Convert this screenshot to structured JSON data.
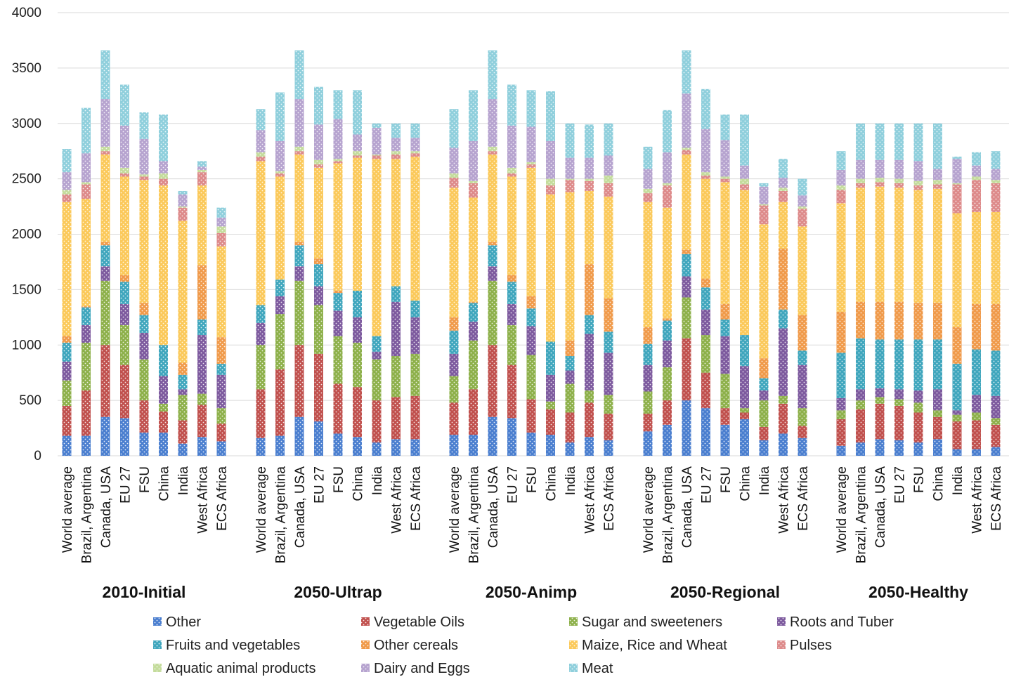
{
  "chart_data": {
    "type": "bar",
    "stacked": true,
    "ylim": [
      0,
      4000
    ],
    "yticks": [
      0,
      500,
      1000,
      1500,
      2000,
      2500,
      3000,
      3500,
      4000
    ],
    "grid": true,
    "legend_position": "bottom",
    "regions": [
      "World average",
      "Brazil, Argentina",
      "Canada, USA",
      "EU 27",
      "FSU",
      "China",
      "India",
      "West Africa",
      "ECS Africa"
    ],
    "scenarios": [
      "2010-Initial",
      "2050-Ultrap",
      "2050-Animp",
      "2050-Regional",
      "2050-Healthy"
    ],
    "series": [
      {
        "name": "Other",
        "color": "#4a7ecf"
      },
      {
        "name": "Vegetable Oils",
        "color": "#c0504d"
      },
      {
        "name": "Sugar and sweeteners",
        "color": "#8db04a"
      },
      {
        "name": "Roots and Tuber",
        "color": "#7d5a9e"
      },
      {
        "name": "Fruits and vegetables",
        "color": "#3fa6bd"
      },
      {
        "name": "Other cereals",
        "color": "#f09a4a"
      },
      {
        "name": "Maize, Rice and Wheat",
        "color": "#fbc95a"
      },
      {
        "name": "Pulses",
        "color": "#dd8a8a"
      },
      {
        "name": "Aquatic animal products",
        "color": "#c4dc9c"
      },
      {
        "name": "Dairy and Eggs",
        "color": "#b6a3cf"
      },
      {
        "name": "Meat",
        "color": "#8fcfdc"
      }
    ],
    "values": [
      [
        [
          180,
          270,
          230,
          170,
          170,
          60,
          1210,
          70,
          40,
          160,
          210
        ],
        [
          180,
          410,
          430,
          160,
          160,
          10,
          970,
          130,
          20,
          260,
          410
        ],
        [
          350,
          650,
          580,
          130,
          190,
          30,
          790,
          30,
          40,
          430,
          440
        ],
        [
          340,
          480,
          360,
          190,
          200,
          60,
          890,
          30,
          50,
          380,
          370
        ],
        [
          210,
          290,
          370,
          240,
          160,
          110,
          1110,
          30,
          20,
          320,
          240
        ],
        [
          210,
          190,
          70,
          250,
          280,
          0,
          1440,
          60,
          50,
          110,
          420
        ],
        [
          110,
          210,
          230,
          50,
          130,
          110,
          1280,
          120,
          10,
          110,
          30
        ],
        [
          170,
          290,
          100,
          530,
          140,
          490,
          720,
          120,
          20,
          30,
          50
        ],
        [
          130,
          160,
          140,
          300,
          100,
          240,
          820,
          120,
          60,
          80,
          90
        ]
      ],
      [
        [
          160,
          440,
          400,
          200,
          160,
          0,
          1300,
          40,
          40,
          200,
          190
        ],
        [
          180,
          600,
          500,
          160,
          150,
          0,
          930,
          30,
          20,
          270,
          440
        ],
        [
          350,
          650,
          580,
          130,
          190,
          30,
          790,
          30,
          40,
          430,
          440
        ],
        [
          310,
          610,
          440,
          170,
          200,
          50,
          820,
          30,
          40,
          320,
          340
        ],
        [
          200,
          450,
          430,
          230,
          160,
          20,
          1150,
          20,
          20,
          360,
          260
        ],
        [
          170,
          450,
          400,
          230,
          240,
          0,
          1200,
          20,
          40,
          150,
          400
        ],
        [
          120,
          380,
          370,
          70,
          140,
          0,
          1600,
          30,
          10,
          240,
          40
        ],
        [
          150,
          380,
          370,
          490,
          140,
          0,
          1150,
          40,
          30,
          120,
          130
        ],
        [
          150,
          390,
          380,
          330,
          150,
          0,
          1300,
          30,
          20,
          120,
          130
        ]
      ],
      [
        [
          190,
          290,
          240,
          200,
          210,
          120,
          1170,
          90,
          40,
          230,
          350
        ],
        [
          190,
          410,
          440,
          170,
          170,
          10,
          940,
          130,
          20,
          360,
          460
        ],
        [
          350,
          650,
          580,
          130,
          190,
          30,
          790,
          30,
          40,
          430,
          440
        ],
        [
          340,
          480,
          360,
          190,
          200,
          60,
          890,
          30,
          50,
          380,
          370
        ],
        [
          210,
          300,
          400,
          260,
          160,
          110,
          1160,
          30,
          20,
          320,
          330
        ],
        [
          190,
          230,
          70,
          240,
          300,
          0,
          1330,
          80,
          60,
          340,
          450
        ],
        [
          120,
          270,
          260,
          120,
          130,
          140,
          1340,
          110,
          10,
          190,
          310
        ],
        [
          170,
          310,
          110,
          510,
          170,
          460,
          660,
          90,
          20,
          190,
          300
        ],
        [
          140,
          240,
          170,
          380,
          190,
          300,
          920,
          120,
          70,
          180,
          290
        ]
      ],
      [
        [
          220,
          160,
          200,
          240,
          190,
          150,
          1130,
          80,
          40,
          180,
          200
        ],
        [
          280,
          220,
          300,
          240,
          180,
          20,
          1000,
          200,
          20,
          280,
          380
        ],
        [
          500,
          560,
          370,
          190,
          200,
          40,
          860,
          40,
          20,
          490,
          390
        ],
        [
          430,
          320,
          340,
          230,
          200,
          80,
          900,
          30,
          30,
          390,
          360
        ],
        [
          280,
          150,
          310,
          340,
          150,
          140,
          1100,
          30,
          20,
          330,
          230
        ],
        [
          330,
          60,
          40,
          380,
          280,
          0,
          1310,
          50,
          50,
          120,
          460
        ],
        [
          140,
          120,
          240,
          90,
          110,
          180,
          1210,
          170,
          10,
          160,
          30
        ],
        [
          200,
          270,
          70,
          610,
          170,
          550,
          420,
          100,
          30,
          90,
          170
        ],
        [
          160,
          110,
          160,
          390,
          130,
          320,
          800,
          160,
          20,
          100,
          150
        ]
      ],
      [
        [
          90,
          240,
          80,
          110,
          410,
          370,
          980,
          120,
          40,
          140,
          170
        ],
        [
          120,
          300,
          80,
          100,
          460,
          330,
          1030,
          40,
          40,
          170,
          330
        ],
        [
          150,
          320,
          60,
          80,
          440,
          340,
          1040,
          40,
          40,
          160,
          330
        ],
        [
          140,
          310,
          60,
          90,
          450,
          340,
          1030,
          40,
          40,
          170,
          330
        ],
        [
          120,
          270,
          90,
          110,
          460,
          330,
          1020,
          40,
          40,
          180,
          340
        ],
        [
          150,
          200,
          60,
          190,
          450,
          330,
          1030,
          40,
          40,
          100,
          410
        ],
        [
          60,
          250,
          60,
          40,
          420,
          330,
          1030,
          260,
          10,
          220,
          20
        ],
        [
          60,
          260,
          70,
          160,
          410,
          410,
          830,
          290,
          30,
          100,
          120
        ],
        [
          80,
          200,
          60,
          200,
          410,
          420,
          830,
          260,
          30,
          100,
          160
        ]
      ]
    ]
  }
}
